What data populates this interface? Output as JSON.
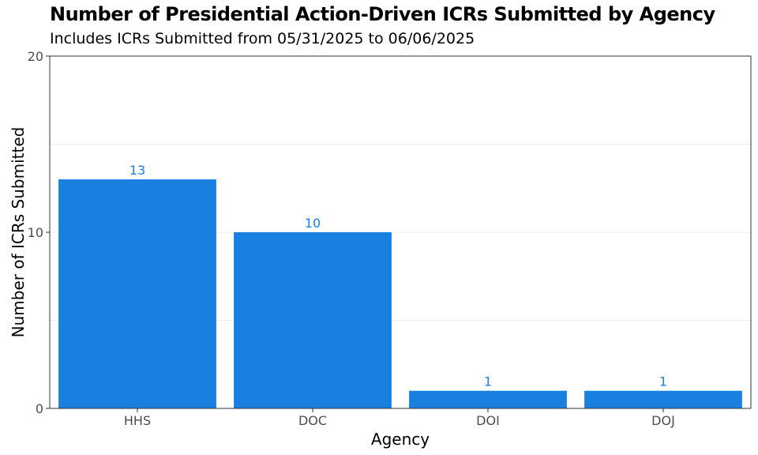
{
  "chart_data": {
    "type": "bar",
    "title": "Number of Presidential Action-Driven ICRs Submitted by Agency",
    "subtitle": "Includes ICRs Submitted from 05/31/2025 to 06/06/2025",
    "xlabel": "Agency",
    "ylabel": "Number of ICRs Submitted",
    "categories": [
      "HHS",
      "DOC",
      "DOI",
      "DOJ"
    ],
    "values": [
      13,
      10,
      1,
      1
    ],
    "ylim": [
      0,
      20
    ],
    "yticks": [
      0,
      10,
      20
    ],
    "grid": true,
    "bar_color": "#1a80e0",
    "label_color": "#1a80e0"
  }
}
